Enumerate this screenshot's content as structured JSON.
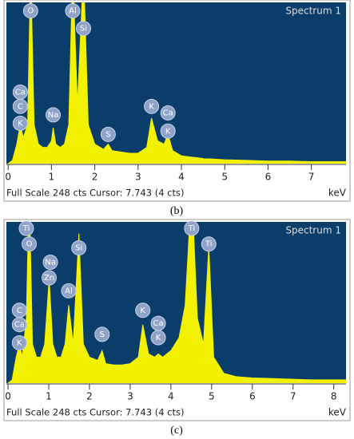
{
  "chart_data": [
    {
      "type": "area",
      "title": "Spectrum 1",
      "footer": "Full Scale 248 cts Cursor: 7.743  (4 cts)",
      "x_label": "keV",
      "caption": "(b)",
      "x": [
        0,
        0.1,
        0.2,
        0.28,
        0.35,
        0.45,
        0.52,
        0.6,
        0.7,
        0.8,
        0.9,
        1.0,
        1.04,
        1.1,
        1.2,
        1.3,
        1.4,
        1.49,
        1.6,
        1.74,
        1.85,
        2.0,
        2.2,
        2.31,
        2.4,
        2.6,
        2.8,
        3.0,
        3.2,
        3.31,
        3.45,
        3.6,
        3.69,
        3.8,
        4.0,
        4.5,
        5,
        5.5,
        6,
        6.5,
        7,
        7.5,
        7.8
      ],
      "series": [
        {
          "color": "#f2f200",
          "values": [
            0,
            5,
            30,
            60,
            40,
            60,
            300,
            60,
            30,
            25,
            25,
            35,
            55,
            30,
            25,
            30,
            60,
            300,
            90,
            300,
            60,
            30,
            22,
            30,
            20,
            18,
            16,
            16,
            25,
            70,
            35,
            30,
            45,
            20,
            12,
            8,
            6,
            5,
            4,
            4,
            3,
            3,
            3
          ]
        }
      ],
      "xlim": [
        -0.04,
        7.8
      ],
      "ylim": [
        0,
        248
      ],
      "xticks": [
        0,
        1,
        2,
        3,
        4,
        5,
        6,
        7
      ],
      "annotations": [
        {
          "label": "O",
          "x": 0.52,
          "y": 235
        },
        {
          "label": "Al",
          "x": 1.49,
          "y": 235
        },
        {
          "label": "Si",
          "x": 1.74,
          "y": 208
        },
        {
          "label": "Ca",
          "x": 0.28,
          "y": 110
        },
        {
          "label": "C",
          "x": 0.28,
          "y": 88
        },
        {
          "label": "K",
          "x": 0.28,
          "y": 62
        },
        {
          "label": "Na",
          "x": 1.04,
          "y": 75
        },
        {
          "label": "S",
          "x": 2.31,
          "y": 45
        },
        {
          "label": "K",
          "x": 3.31,
          "y": 88
        },
        {
          "label": "Ca",
          "x": 3.69,
          "y": 78
        },
        {
          "label": "K",
          "x": 3.69,
          "y": 50
        }
      ]
    },
    {
      "type": "area",
      "title": "Spectrum 1",
      "footer": "Full Scale 248 cts Cursor: 7.743  (4 cts)",
      "x_label": "keV",
      "caption": "(c)",
      "x": [
        0,
        0.1,
        0.2,
        0.28,
        0.35,
        0.45,
        0.52,
        0.6,
        0.7,
        0.8,
        0.9,
        1.01,
        1.1,
        1.2,
        1.3,
        1.4,
        1.49,
        1.6,
        1.74,
        1.85,
        2.0,
        2.2,
        2.31,
        2.4,
        2.6,
        2.8,
        3.0,
        3.2,
        3.31,
        3.45,
        3.6,
        3.69,
        3.8,
        4.0,
        4.2,
        4.35,
        4.51,
        4.65,
        4.8,
        4.93,
        5.05,
        5.3,
        5.6,
        6,
        6.5,
        7,
        7.5,
        8,
        8.3
      ],
      "series": [
        {
          "color": "#f2f200",
          "values": [
            0,
            5,
            40,
            60,
            40,
            100,
            300,
            60,
            40,
            40,
            60,
            160,
            60,
            40,
            40,
            60,
            120,
            60,
            230,
            60,
            40,
            35,
            50,
            30,
            28,
            28,
            30,
            40,
            90,
            45,
            40,
            45,
            40,
            50,
            70,
            120,
            300,
            100,
            60,
            210,
            40,
            15,
            10,
            8,
            7,
            6,
            5,
            5,
            5
          ]
        }
      ],
      "xlim": [
        -0.04,
        8.3
      ],
      "ylim": [
        0,
        248
      ],
      "xticks": [
        0,
        1,
        2,
        3,
        4,
        5,
        6,
        7,
        8
      ],
      "annotations": [
        {
          "label": "Ti",
          "x": 0.45,
          "y": 238
        },
        {
          "label": "O",
          "x": 0.52,
          "y": 214
        },
        {
          "label": "Na",
          "x": 1.04,
          "y": 186
        },
        {
          "label": "Zn",
          "x": 1.01,
          "y": 162
        },
        {
          "label": "Si",
          "x": 1.74,
          "y": 208
        },
        {
          "label": "Al",
          "x": 1.49,
          "y": 142
        },
        {
          "label": "Ti",
          "x": 4.51,
          "y": 238
        },
        {
          "label": "Ti",
          "x": 4.93,
          "y": 214
        },
        {
          "label": "C",
          "x": 0.28,
          "y": 112
        },
        {
          "label": "Ca",
          "x": 0.28,
          "y": 90
        },
        {
          "label": "K",
          "x": 0.28,
          "y": 62
        },
        {
          "label": "K",
          "x": 3.31,
          "y": 112
        },
        {
          "label": "Ca",
          "x": 3.69,
          "y": 92
        },
        {
          "label": "S",
          "x": 2.31,
          "y": 75
        },
        {
          "label": "K",
          "x": 3.69,
          "y": 70
        }
      ]
    }
  ]
}
